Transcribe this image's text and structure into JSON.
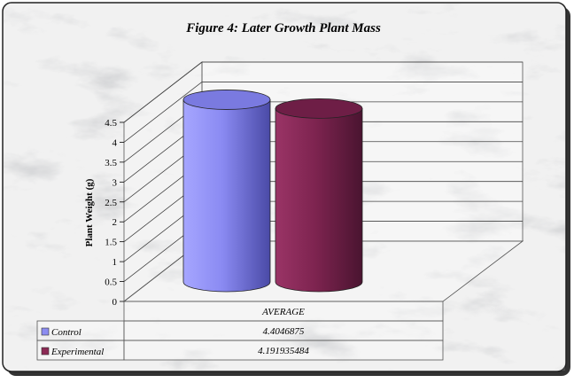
{
  "chart_data": {
    "type": "bar",
    "style": "3d-cylinder",
    "title": "Figure 4: Later Growth Plant Mass",
    "ylabel": "Plant Weight (g)",
    "xlabel": "",
    "categories": [
      "AVERAGE"
    ],
    "ylim": [
      0,
      4.5
    ],
    "yticks": [
      "0",
      "0.5",
      "1",
      "1.5",
      "2",
      "2.5",
      "3",
      "3.5",
      "4",
      "4.5"
    ],
    "grid": true,
    "legend": "data-table",
    "series": [
      {
        "name": "Control",
        "values": [
          4.4046875
        ],
        "label": "4.4046875",
        "color": "#8c8cf0"
      },
      {
        "name": "Experimental",
        "values": [
          4.191935484
        ],
        "label": "4.191935484",
        "color": "#8c2a55"
      }
    ]
  }
}
